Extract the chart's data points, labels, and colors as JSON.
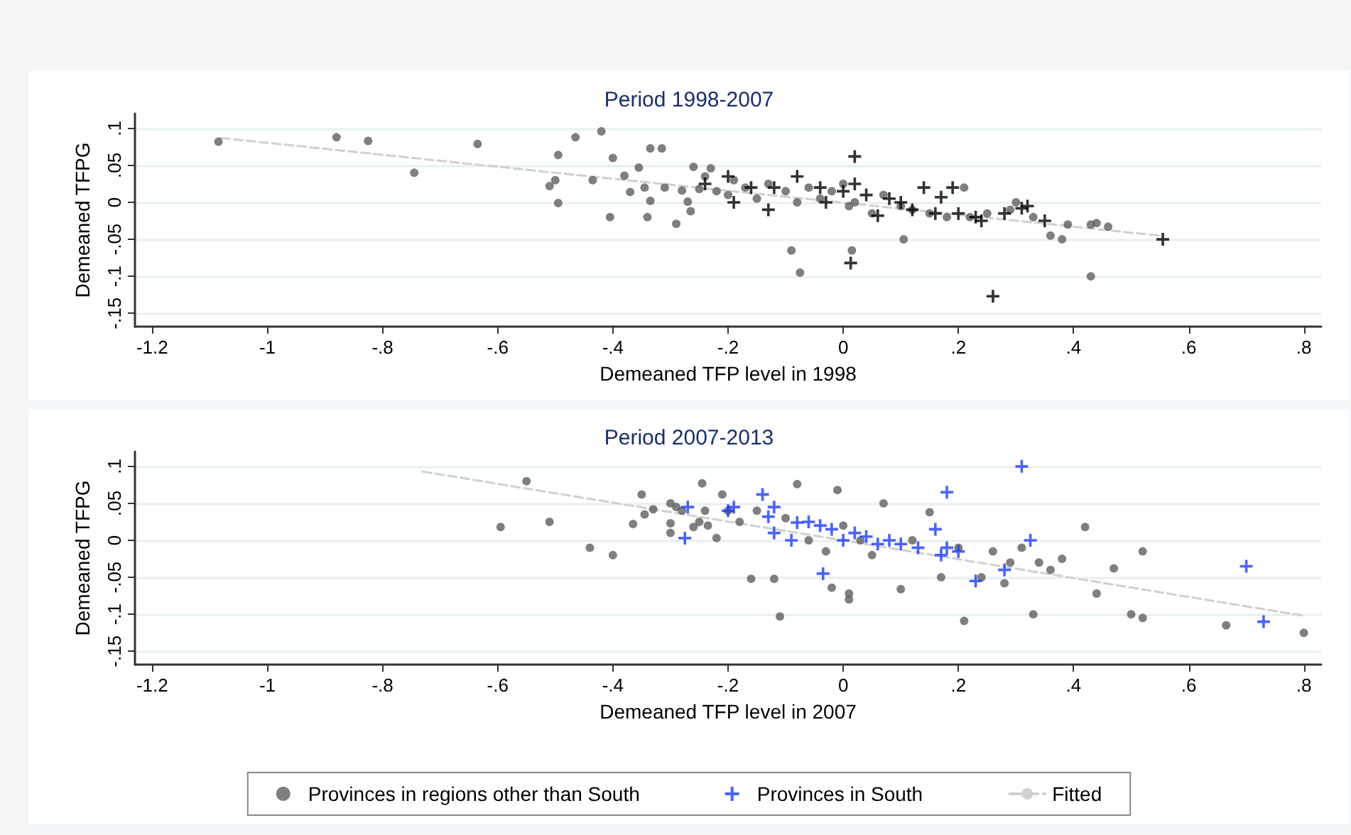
{
  "chart_data": [
    {
      "type": "scatter",
      "title": "Period 1998-2007",
      "xlabel": "Demeaned TFP level in 1998",
      "ylabel": "Demeaned TFPG",
      "xlim": [
        -1.23,
        0.83
      ],
      "ylim": [
        -0.168,
        0.12
      ],
      "xticks": [
        {
          "value": -1.2,
          "label": "-1.2"
        },
        {
          "value": -1,
          "label": "-1"
        },
        {
          "value": -0.8,
          "label": "-.8"
        },
        {
          "value": -0.6,
          "label": "-.6"
        },
        {
          "value": -0.4,
          "label": "-.4"
        },
        {
          "value": -0.2,
          "label": "-.2"
        },
        0,
        {
          "value": 0.2,
          "label": ".2"
        },
        {
          "value": 0.4,
          "label": ".4"
        },
        {
          "value": 0.6,
          "label": ".6"
        },
        {
          "value": 0.8,
          "label": ".8"
        }
      ],
      "yticks": [
        {
          "value": -0.15,
          "label": "-.15"
        },
        {
          "value": -0.1,
          "label": "-.1"
        },
        {
          "value": -0.05,
          "label": "-.05"
        },
        0,
        {
          "value": 0.05,
          "label": ".05"
        },
        {
          "value": 0.1,
          "label": ".1"
        }
      ],
      "grid": "y",
      "legend": false,
      "series": [
        {
          "marker": "circle",
          "color": "#5f5f5f",
          "x": [
            -1.085,
            -0.88,
            -0.825,
            -0.745,
            -0.635,
            -0.51,
            -0.5,
            -0.495,
            -0.495,
            -0.465,
            -0.435,
            -0.42,
            -0.405,
            -0.4,
            -0.38,
            -0.37,
            -0.355,
            -0.345,
            -0.34,
            -0.335,
            -0.335,
            -0.315,
            -0.31,
            -0.29,
            -0.28,
            -0.27,
            -0.265,
            -0.26,
            -0.25,
            -0.24,
            -0.23,
            -0.22,
            -0.2,
            -0.19,
            -0.17,
            -0.15,
            -0.13,
            -0.1,
            -0.09,
            -0.08,
            -0.075,
            -0.06,
            -0.04,
            -0.02,
            0,
            0.01,
            0.015,
            0.02,
            0.05,
            0.07,
            0.1,
            0.105,
            0.12,
            0.15,
            0.18,
            0.21,
            0.22,
            0.25,
            0.29,
            0.3,
            0.33,
            0.36,
            0.38,
            0.39,
            0.43,
            0.43,
            0.44,
            0.46
          ],
          "values": [
            0.082,
            0.088,
            0.083,
            0.04,
            0.079,
            0.022,
            0.03,
            0.064,
            -0.001,
            0.088,
            0.03,
            0.096,
            -0.02,
            0.06,
            0.036,
            0.014,
            0.047,
            0.02,
            -0.02,
            0.073,
            0.002,
            0.073,
            0.02,
            -0.029,
            0.016,
            0.001,
            -0.012,
            0.048,
            0.018,
            0.035,
            0.046,
            0.015,
            0.01,
            0.03,
            0.02,
            0.005,
            0.025,
            0.015,
            -0.065,
            0,
            -0.095,
            0.02,
            0.005,
            0.015,
            0.025,
            -0.005,
            -0.065,
            0,
            -0.015,
            0.01,
            -0.005,
            -0.05,
            -0.01,
            -0.015,
            -0.02,
            0.02,
            -0.02,
            -0.015,
            -0.01,
            0,
            -0.02,
            -0.045,
            -0.05,
            -0.03,
            -0.1,
            -0.03,
            -0.028,
            -0.033
          ]
        },
        {
          "marker": "cross",
          "color": "#000000",
          "x": [
            -0.24,
            -0.2,
            -0.19,
            -0.16,
            -0.13,
            -0.12,
            -0.08,
            -0.04,
            -0.03,
            0,
            0.02,
            0.02,
            0.04,
            0.06,
            0.08,
            0.1,
            0.12,
            0.14,
            0.16,
            0.17,
            0.19,
            0.2,
            0.23,
            0.24,
            0.26,
            0.28,
            0.31,
            0.32,
            0.35,
            0.555,
            0.013
          ],
          "values": [
            0.025,
            0.035,
            0,
            0.02,
            -0.01,
            0.02,
            0.035,
            0.02,
            0,
            0.015,
            0.062,
            0.025,
            0.01,
            -0.018,
            0.005,
            0,
            -0.01,
            0.02,
            -0.015,
            0.007,
            0.02,
            -0.015,
            -0.02,
            -0.025,
            -0.127,
            -0.015,
            -0.008,
            -0.005,
            -0.025,
            -0.05,
            -0.082
          ]
        },
        {
          "type": "line",
          "marker": "none",
          "line_style": "dashed",
          "color": "#d0d0d0",
          "x": [
            -1.08,
            0.55
          ],
          "values": [
            0.087,
            -0.045
          ]
        }
      ]
    },
    {
      "type": "scatter",
      "title": "Period 2007-2013",
      "xlabel": "Demeaned TFP level in 2007",
      "ylabel": "Demeaned TFPG",
      "xlim": [
        -1.23,
        0.83
      ],
      "ylim": [
        -0.168,
        0.12
      ],
      "xticks": [
        {
          "value": -1.2,
          "label": "-1.2"
        },
        {
          "value": -1,
          "label": "-1"
        },
        {
          "value": -0.8,
          "label": "-.8"
        },
        {
          "value": -0.6,
          "label": "-.6"
        },
        {
          "value": -0.4,
          "label": "-.4"
        },
        {
          "value": -0.2,
          "label": "-.2"
        },
        0,
        {
          "value": 0.2,
          "label": ".2"
        },
        {
          "value": 0.4,
          "label": ".4"
        },
        {
          "value": 0.6,
          "label": ".6"
        },
        {
          "value": 0.8,
          "label": ".8"
        }
      ],
      "yticks": [
        {
          "value": -0.15,
          "label": "-.15"
        },
        {
          "value": -0.1,
          "label": "-.1"
        },
        {
          "value": -0.05,
          "label": "-.05"
        },
        0,
        {
          "value": 0.05,
          "label": ".05"
        },
        {
          "value": 0.1,
          "label": ".1"
        }
      ],
      "grid": "y",
      "legend": "bottom",
      "series": [
        {
          "name": "Provinces in regions other than South",
          "marker": "circle",
          "color": "#5f5f5f",
          "x": [
            -0.595,
            -0.55,
            -0.51,
            -0.44,
            -0.4,
            -0.365,
            -0.35,
            -0.345,
            -0.33,
            -0.3,
            -0.3,
            -0.3,
            -0.29,
            -0.28,
            -0.26,
            -0.25,
            -0.245,
            -0.24,
            -0.235,
            -0.22,
            -0.21,
            -0.2,
            -0.18,
            -0.16,
            -0.15,
            -0.12,
            -0.11,
            -0.1,
            -0.08,
            -0.06,
            -0.03,
            -0.02,
            -0.01,
            0,
            0.01,
            0.01,
            0.03,
            0.05,
            0.07,
            0.1,
            0.12,
            0.15,
            0.17,
            0.2,
            0.21,
            0.24,
            0.26,
            0.28,
            0.29,
            0.31,
            0.33,
            0.34,
            0.36,
            0.38,
            0.42,
            0.44,
            0.47,
            0.5,
            0.52,
            0.52,
            0.665,
            0.8
          ],
          "values": [
            0.018,
            0.08,
            0.025,
            -0.01,
            -0.02,
            0.022,
            0.062,
            0.035,
            0.042,
            0.05,
            0.023,
            0.01,
            0.045,
            0.04,
            0.018,
            0.025,
            0.077,
            0.04,
            0.02,
            0.003,
            0.062,
            0.04,
            0.025,
            -0.052,
            0.04,
            -0.052,
            -0.103,
            0.03,
            0.076,
            0,
            -0.015,
            -0.064,
            0.068,
            0.02,
            -0.08,
            -0.072,
            0,
            -0.02,
            0.05,
            -0.066,
            0,
            0.038,
            -0.05,
            -0.01,
            -0.109,
            -0.05,
            -0.015,
            -0.058,
            -0.03,
            -0.01,
            -0.1,
            -0.03,
            -0.04,
            -0.025,
            0.018,
            -0.072,
            -0.038,
            -0.1,
            -0.105,
            -0.015,
            -0.115,
            -0.125
          ]
        },
        {
          "name": "Provinces in South",
          "marker": "cross",
          "color": "#1f3cff",
          "x": [
            -0.27,
            -0.275,
            -0.2,
            -0.19,
            -0.14,
            -0.13,
            -0.12,
            -0.12,
            -0.09,
            -0.08,
            -0.06,
            -0.04,
            -0.035,
            -0.02,
            0,
            0.02,
            0.04,
            0.06,
            0.08,
            0.1,
            0.13,
            0.16,
            0.17,
            0.18,
            0.18,
            0.2,
            0.23,
            0.28,
            0.31,
            0.325,
            0.7,
            0.73
          ],
          "values": [
            0.045,
            0.003,
            0.04,
            0.045,
            0.062,
            0.032,
            0.045,
            0.01,
            0,
            0.024,
            0.025,
            0.02,
            -0.045,
            0.015,
            0,
            0.01,
            0.005,
            -0.005,
            0,
            -0.005,
            -0.01,
            0.015,
            -0.02,
            0.065,
            -0.01,
            -0.015,
            -0.055,
            -0.04,
            0.1,
            0,
            -0.035,
            -0.11
          ]
        },
        {
          "type": "line",
          "name": "Fitted",
          "marker": "none",
          "line_style": "dashed",
          "color": "#d0d0d0",
          "x": [
            -0.73,
            0.8
          ],
          "values": [
            0.093,
            -0.102
          ]
        }
      ]
    }
  ]
}
